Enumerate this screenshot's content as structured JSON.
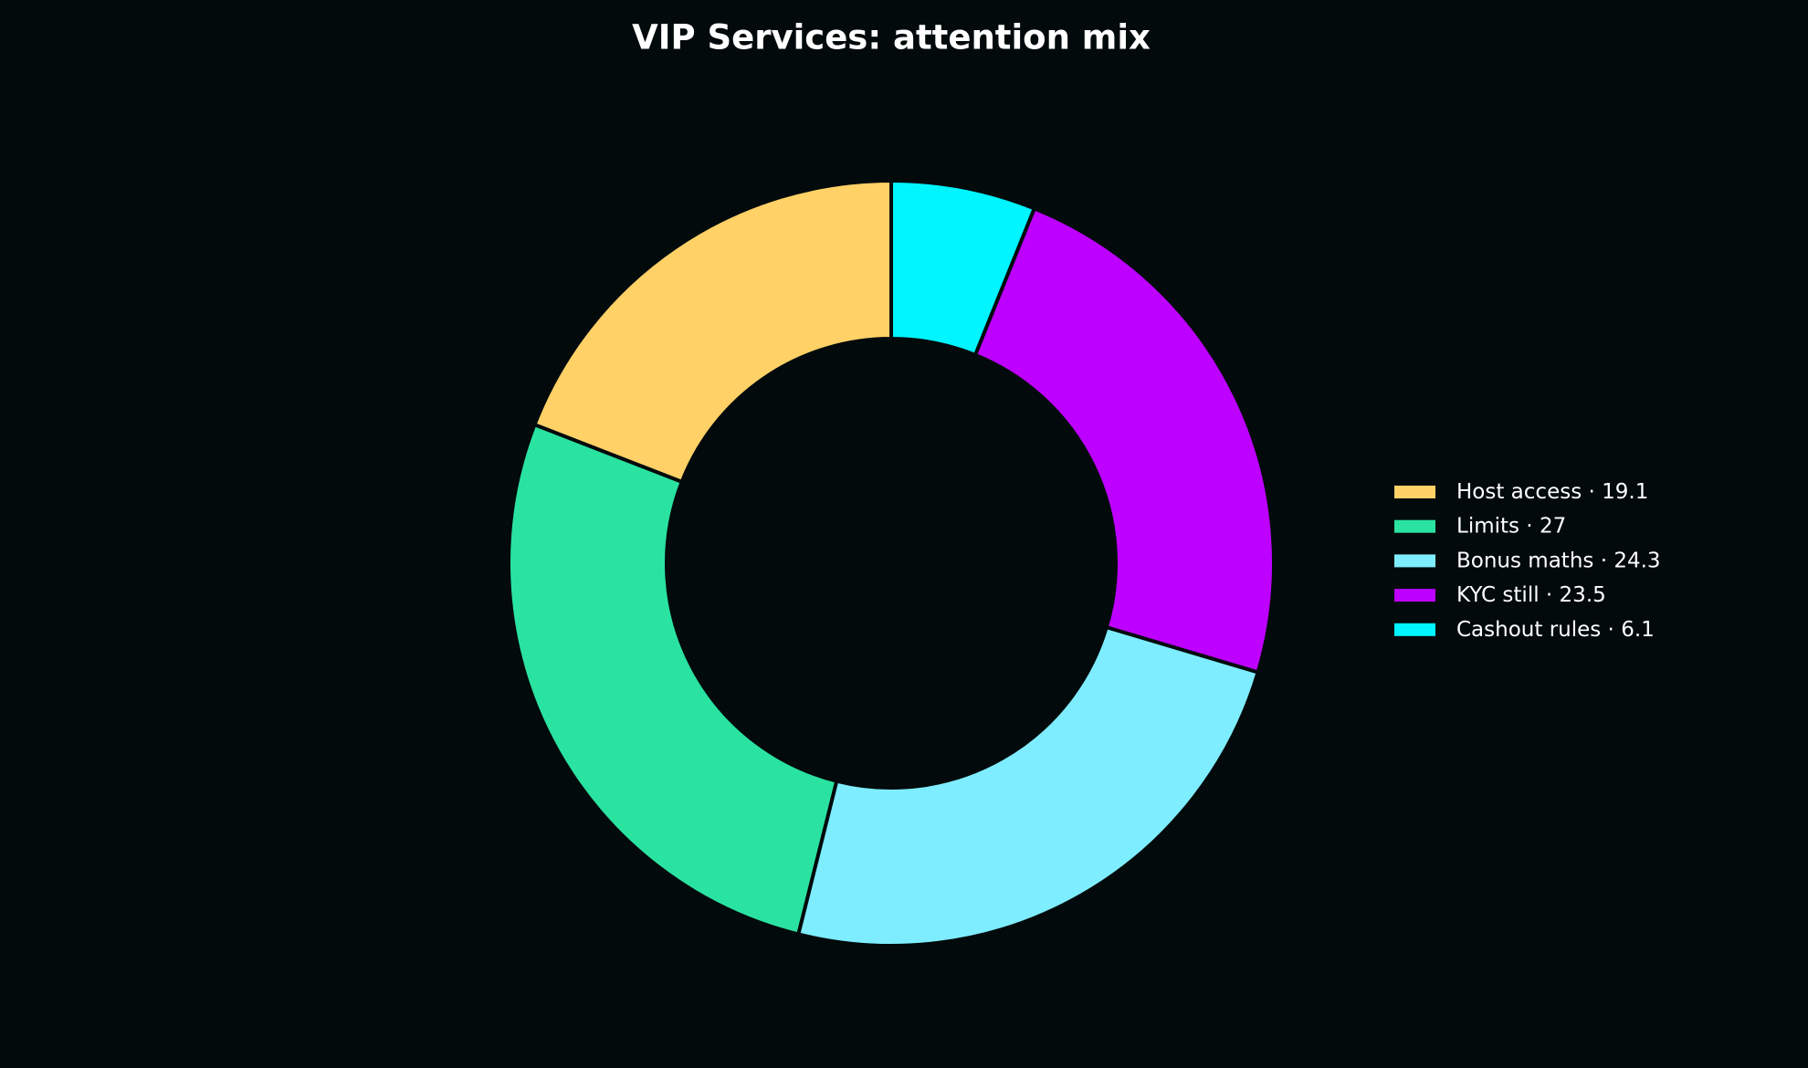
{
  "chart_data": {
    "type": "donut",
    "title": "VIP Services: attention mix",
    "categories": [
      "Host access",
      "Limits",
      "Bonus maths",
      "KYC still",
      "Cashout rules"
    ],
    "values": [
      19.1,
      27,
      24.3,
      23.5,
      6.1
    ],
    "colors": [
      "#ffd166",
      "#2ae3a0",
      "#7eedff",
      "#bd00ff",
      "#00f5ff"
    ],
    "legend_separator": " · ",
    "legend": "right"
  }
}
